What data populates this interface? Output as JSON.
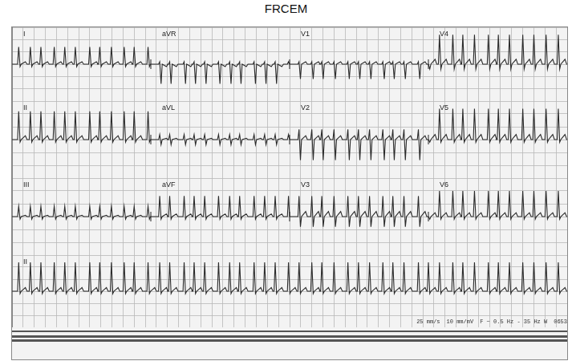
{
  "title": "FRCEM",
  "footer": [
    "25 mm/s",
    "10 mm/mV",
    "F ~ 0.5 Hz - 35 Hz W",
    "0653"
  ],
  "beats": [
    0.12,
    0.33,
    0.52,
    0.76,
    0.95,
    1.14,
    1.4,
    1.58,
    1.79,
    2.02,
    2.2,
    2.45,
    2.66,
    2.84,
    3.1,
    3.28,
    3.47,
    3.72,
    3.92,
    4.1,
    4.36,
    4.55,
    4.74,
    4.98,
    5.17,
    5.4,
    5.58,
    5.8,
    6.05,
    6.24,
    6.44,
    6.68,
    6.86,
    7.06,
    7.32,
    7.5,
    7.7,
    7.94,
    8.12,
    8.33,
    8.58,
    8.76,
    8.96,
    9.2,
    9.4,
    9.62,
    9.84
  ],
  "chart_data": [
    {
      "type": "line",
      "color": "#2a2a2a",
      "grid": true,
      "tick_labels": false,
      "xlim": [
        0,
        10
      ],
      "xticks": [
        0,
        0.2,
        0.4,
        0.6,
        0.8,
        1,
        1.2,
        1.4,
        1.6,
        1.8,
        2,
        2.2,
        2.4,
        2.6,
        2.8,
        3,
        3.2,
        3.4,
        3.6,
        3.8,
        4,
        4.2,
        4.4,
        4.6,
        4.8,
        5,
        5.2,
        5.4,
        5.6,
        5.8,
        6,
        6.2,
        6.4,
        6.6,
        6.8,
        7,
        7.2,
        7.4,
        7.6,
        7.8,
        8,
        8.2,
        8.4,
        8.6,
        8.8,
        9,
        9.2,
        9.4,
        9.6,
        9.8,
        10
      ],
      "ylim": [
        -15,
        15
      ],
      "yticks": [
        -15,
        -10,
        -5,
        0,
        5,
        10,
        15
      ],
      "leads": [
        {
          "label": "I",
          "start": 0,
          "end": 2.5,
          "r": 7,
          "s": 1,
          "t": 1
        },
        {
          "label": "aVR",
          "start": 2.5,
          "end": 5,
          "r": 1,
          "s": 8,
          "t": -1
        },
        {
          "label": "V1",
          "start": 5,
          "end": 7.5,
          "r": 1,
          "s": 6,
          "t": 1
        },
        {
          "label": "V4",
          "start": 7.5,
          "end": 10,
          "r": 12,
          "s": 2,
          "t": 2
        }
      ]
    },
    {
      "type": "line",
      "color": "#2a2a2a",
      "grid": true,
      "tick_labels": false,
      "xlim": [
        0,
        10
      ],
      "xticks": [
        0,
        0.2,
        0.4,
        0.6,
        0.8,
        1,
        1.2,
        1.4,
        1.6,
        1.8,
        2,
        2.2,
        2.4,
        2.6,
        2.8,
        3,
        3.2,
        3.4,
        3.6,
        3.8,
        4,
        4.2,
        4.4,
        4.6,
        4.8,
        5,
        5.2,
        5.4,
        5.6,
        5.8,
        6,
        6.2,
        6.4,
        6.6,
        6.8,
        7,
        7.2,
        7.4,
        7.6,
        7.8,
        8,
        8.2,
        8.4,
        8.6,
        8.8,
        9,
        9.2,
        9.4,
        9.6,
        9.8,
        10
      ],
      "ylim": [
        -15,
        15
      ],
      "yticks": [
        -15,
        -10,
        -5,
        0,
        5,
        10,
        15
      ],
      "leads": [
        {
          "label": "II",
          "start": 0,
          "end": 2.5,
          "r": 11,
          "s": 1,
          "t": 1.5
        },
        {
          "label": "aVL",
          "start": 2.5,
          "end": 5,
          "r": 2,
          "s": 2,
          "t": 0.5
        },
        {
          "label": "V2",
          "start": 5,
          "end": 7.5,
          "r": 4,
          "s": 8,
          "t": 1.5
        },
        {
          "label": "V5",
          "start": 7.5,
          "end": 10,
          "r": 12,
          "s": 1,
          "t": 2
        }
      ]
    },
    {
      "type": "line",
      "color": "#2a2a2a",
      "grid": true,
      "tick_labels": false,
      "xlim": [
        0,
        10
      ],
      "xticks": [
        0,
        0.2,
        0.4,
        0.6,
        0.8,
        1,
        1.2,
        1.4,
        1.6,
        1.8,
        2,
        2.2,
        2.4,
        2.6,
        2.8,
        3,
        3.2,
        3.4,
        3.6,
        3.8,
        4,
        4.2,
        4.4,
        4.6,
        4.8,
        5,
        5.2,
        5.4,
        5.6,
        5.8,
        6,
        6.2,
        6.4,
        6.6,
        6.8,
        7,
        7.2,
        7.4,
        7.6,
        7.8,
        8,
        8.2,
        8.4,
        8.6,
        8.8,
        9,
        9.2,
        9.4,
        9.6,
        9.8,
        10
      ],
      "ylim": [
        -15,
        15
      ],
      "yticks": [
        -15,
        -10,
        -5,
        0,
        5,
        10,
        15
      ],
      "leads": [
        {
          "label": "III",
          "start": 0,
          "end": 2.5,
          "r": 4,
          "s": 1,
          "t": 0.5
        },
        {
          "label": "aVF",
          "start": 2.5,
          "end": 5,
          "r": 8,
          "s": 1,
          "t": 1
        },
        {
          "label": "V3",
          "start": 5,
          "end": 7.5,
          "r": 8,
          "s": 4,
          "t": 2
        },
        {
          "label": "V6",
          "start": 7.5,
          "end": 10,
          "r": 10,
          "s": 1,
          "t": 1.5
        }
      ]
    },
    {
      "type": "line",
      "color": "#2a2a2a",
      "grid": true,
      "tick_labels": false,
      "xlim": [
        0,
        10
      ],
      "xticks": [
        0,
        0.2,
        0.4,
        0.6,
        0.8,
        1,
        1.2,
        1.4,
        1.6,
        1.8,
        2,
        2.2,
        2.4,
        2.6,
        2.8,
        3,
        3.2,
        3.4,
        3.6,
        3.8,
        4,
        4.2,
        4.4,
        4.6,
        4.8,
        5,
        5.2,
        5.4,
        5.6,
        5.8,
        6,
        6.2,
        6.4,
        6.6,
        6.8,
        7,
        7.2,
        7.4,
        7.6,
        7.8,
        8,
        8.2,
        8.4,
        8.6,
        8.8,
        9,
        9.2,
        9.4,
        9.6,
        9.8,
        10
      ],
      "ylim": [
        -15,
        15
      ],
      "yticks": [
        -15,
        -10,
        -5,
        0,
        5,
        10,
        15
      ],
      "leads": [
        {
          "label": "II",
          "start": 0,
          "end": 10,
          "r": 12,
          "s": 1,
          "t": 1.5
        }
      ]
    }
  ]
}
